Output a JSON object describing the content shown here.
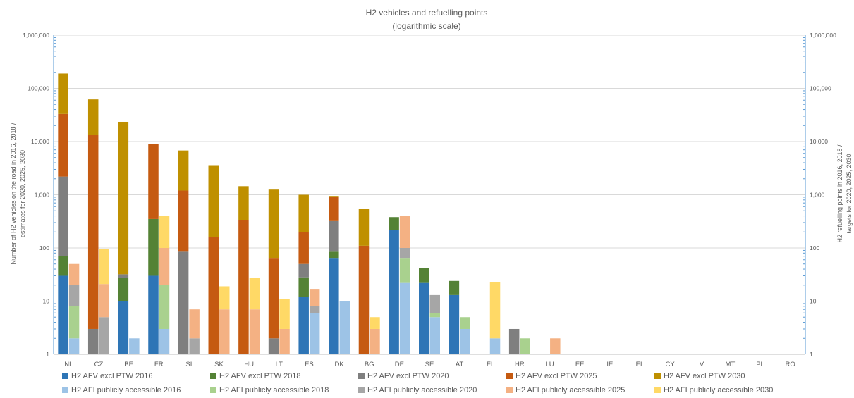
{
  "chart_data": {
    "type": "bar",
    "title": "H2 vehicles and refuelling points",
    "subtitle": "(logarithmic scale)",
    "ylabel_left": [
      "Number of H2 vehicles on the road in 2016, 2018 /",
      "estimates for 2020, 2025, 2030"
    ],
    "ylabel_right": [
      "H2 refuelling points in 2016, 2018 /",
      "targets for 2020, 2025, 2030"
    ],
    "yscale": "log",
    "ylim": [
      1,
      1000000
    ],
    "grid": true,
    "legend_position": "bottom",
    "yticks": [
      {
        "value": 1,
        "label": "1"
      },
      {
        "value": 10,
        "label": "10"
      },
      {
        "value": 100,
        "label": "100"
      },
      {
        "value": 1000,
        "label": "1,000"
      },
      {
        "value": 10000,
        "label": "10,000"
      },
      {
        "value": 100000,
        "label": "100,000"
      },
      {
        "value": 1000000,
        "label": "1,000,000"
      }
    ],
    "categories": [
      "NL",
      "CZ",
      "BE",
      "FR",
      "SI",
      "SK",
      "HU",
      "LT",
      "ES",
      "DK",
      "BG",
      "DE",
      "SE",
      "AT",
      "FI",
      "HR",
      "LU",
      "EE",
      "IE",
      "EL",
      "CY",
      "LV",
      "MT",
      "PL",
      "RO"
    ],
    "stacks": [
      {
        "stack": "vehicles",
        "series": [
          {
            "name": "H2 AFV excl PTW 2016",
            "color": "#2E75B6",
            "values": [
              30,
              null,
              10,
              30,
              null,
              null,
              null,
              null,
              12,
              65,
              null,
              220,
              22,
              13,
              null,
              null,
              null,
              null,
              null,
              null,
              null,
              null,
              null,
              null,
              null
            ]
          },
          {
            "name": "H2 AFV excl PTW 2018",
            "color": "#548235",
            "values": [
              70,
              null,
              27,
              350,
              null,
              null,
              null,
              null,
              28,
              85,
              null,
              380,
              42,
              24,
              null,
              null,
              null,
              null,
              null,
              null,
              null,
              null,
              null,
              null,
              null
            ]
          },
          {
            "name": "H2 AFV excl PTW 2020",
            "color": "#7F7F7F",
            "values": [
              2200,
              3,
              32,
              null,
              85,
              null,
              null,
              2,
              50,
              320,
              null,
              null,
              null,
              null,
              null,
              3,
              null,
              null,
              null,
              null,
              null,
              null,
              null,
              null,
              null
            ]
          },
          {
            "name": "H2 AFV excl PTW 2025",
            "color": "#C55A11",
            "values": [
              33000,
              13500,
              null,
              9000,
              1200,
              160,
              330,
              65,
              200,
              920,
              110,
              null,
              null,
              null,
              null,
              null,
              null,
              null,
              null,
              null,
              null,
              null,
              null,
              null,
              null
            ]
          },
          {
            "name": "H2 AFV excl PTW 2030",
            "color": "#BF9000",
            "values": [
              190000,
              62000,
              23500,
              null,
              6800,
              3600,
              1450,
              1250,
              1000,
              950,
              550,
              null,
              null,
              null,
              null,
              null,
              null,
              null,
              null,
              null,
              null,
              null,
              null,
              null,
              null
            ]
          }
        ]
      },
      {
        "stack": "refuelling_points",
        "series": [
          {
            "name": "H2 AFI publicly accessible 2016",
            "color": "#9DC3E6",
            "values": [
              2,
              null,
              2,
              3,
              null,
              null,
              null,
              null,
              6,
              10,
              null,
              22,
              5,
              3,
              2,
              null,
              null,
              null,
              null,
              null,
              null,
              null,
              null,
              null,
              null
            ]
          },
          {
            "name": "H2 AFI publicly accessible 2018",
            "color": "#A9D18E",
            "values": [
              8,
              null,
              null,
              20,
              null,
              null,
              null,
              null,
              null,
              null,
              null,
              65,
              6,
              5,
              null,
              2,
              null,
              null,
              null,
              null,
              null,
              null,
              null,
              null,
              null
            ]
          },
          {
            "name": "H2 AFI publicly accessible 2020",
            "color": "#A6A6A6",
            "values": [
              20,
              5,
              null,
              null,
              2,
              null,
              null,
              null,
              8,
              null,
              null,
              100,
              13,
              null,
              null,
              null,
              null,
              null,
              null,
              null,
              null,
              null,
              null,
              null,
              null
            ]
          },
          {
            "name": "H2 AFI publicly accessible 2025",
            "color": "#F4B183",
            "values": [
              50,
              21,
              null,
              100,
              7,
              7,
              7,
              3,
              17,
              null,
              3,
              400,
              null,
              null,
              null,
              null,
              2,
              null,
              null,
              null,
              null,
              null,
              null,
              null,
              null
            ]
          },
          {
            "name": "H2 AFI publicly accessible 2030",
            "color": "#FFD966",
            "values": [
              null,
              95,
              null,
              400,
              null,
              19,
              27,
              11,
              null,
              null,
              5,
              null,
              null,
              null,
              23,
              null,
              null,
              null,
              null,
              null,
              null,
              null,
              null,
              null,
              null
            ]
          }
        ]
      }
    ]
  }
}
